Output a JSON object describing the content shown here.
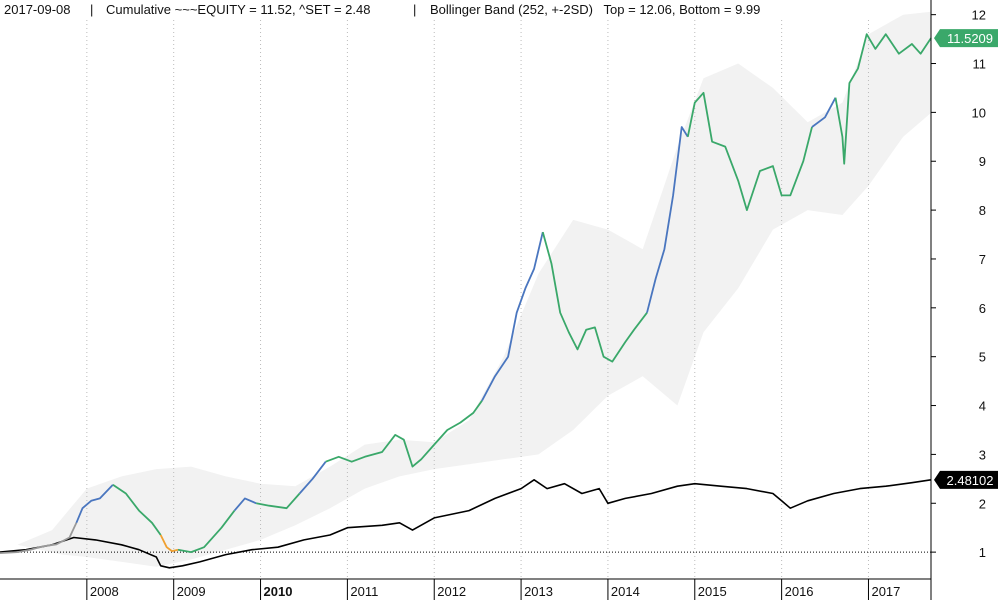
{
  "header": {
    "date": "2017-09-08",
    "sep1": "|",
    "series_info": "Cumulative ~~~EQUITY = 11.52, ^SET = 2.48",
    "sep2": "|",
    "band_info": "Bollinger Band (252, +-2SD)   Top = 12.06, Bottom = 9.99"
  },
  "chart_data": {
    "type": "line",
    "ylim": [
      0.45,
      12.3
    ],
    "y_ticks": [
      1,
      2,
      3,
      4,
      5,
      6,
      7,
      8,
      9,
      10,
      11,
      12
    ],
    "reference_line": 1,
    "x_ticks": [
      {
        "label": "2008",
        "x": 2008.0,
        "bold": false
      },
      {
        "label": "2009",
        "x": 2009.0,
        "bold": false
      },
      {
        "label": "2010",
        "x": 2010.0,
        "bold": true
      },
      {
        "label": "2011",
        "x": 2011.0,
        "bold": false
      },
      {
        "label": "2012",
        "x": 2012.0,
        "bold": false
      },
      {
        "label": "2013",
        "x": 2013.0,
        "bold": false
      },
      {
        "label": "2014",
        "x": 2014.0,
        "bold": false
      },
      {
        "label": "2015",
        "x": 2015.0,
        "bold": false
      },
      {
        "label": "2016",
        "x": 2016.0,
        "bold": false
      },
      {
        "label": "2017",
        "x": 2017.0,
        "bold": false
      }
    ],
    "xlim": [
      2007.0,
      2017.72
    ],
    "colors": {
      "equity_up": "#4a76bf",
      "equity_normal": "#3aa86a",
      "equity_flat": "#999999",
      "equity_down": "#f0a030",
      "set": "#000000",
      "band": "#f2f2f2",
      "grid": "#bbbbbb",
      "equity_tag": "#3aa86a",
      "set_tag": "#000000"
    },
    "series": [
      {
        "name": "~~~EQUITY",
        "last_value_label": "11.5209",
        "segments": [
          {
            "state": "flat",
            "points": [
              [
                2007.0,
                0.98
              ],
              [
                2007.2,
                1.0
              ],
              [
                2007.35,
                1.05
              ],
              [
                2007.5,
                1.12
              ],
              [
                2007.65,
                1.16
              ],
              [
                2007.8,
                1.3
              ],
              [
                2007.88,
                1.6
              ]
            ]
          },
          {
            "state": "up",
            "points": [
              [
                2007.88,
                1.6
              ],
              [
                2007.95,
                1.9
              ],
              [
                2008.05,
                2.05
              ],
              [
                2008.15,
                2.1
              ],
              [
                2008.3,
                2.38
              ]
            ]
          },
          {
            "state": "normal",
            "points": [
              [
                2008.3,
                2.38
              ],
              [
                2008.45,
                2.2
              ],
              [
                2008.6,
                1.85
              ],
              [
                2008.75,
                1.6
              ],
              [
                2008.85,
                1.35
              ]
            ]
          },
          {
            "state": "down",
            "points": [
              [
                2008.85,
                1.35
              ],
              [
                2008.92,
                1.1
              ],
              [
                2008.98,
                1.02
              ],
              [
                2009.05,
                1.05
              ]
            ]
          },
          {
            "state": "normal",
            "points": [
              [
                2009.05,
                1.05
              ],
              [
                2009.2,
                1.0
              ],
              [
                2009.35,
                1.1
              ],
              [
                2009.55,
                1.5
              ],
              [
                2009.7,
                1.85
              ]
            ]
          },
          {
            "state": "up",
            "points": [
              [
                2009.7,
                1.85
              ],
              [
                2009.82,
                2.1
              ],
              [
                2009.95,
                2.0
              ]
            ]
          },
          {
            "state": "normal",
            "points": [
              [
                2009.95,
                2.0
              ],
              [
                2010.1,
                1.95
              ],
              [
                2010.3,
                1.9
              ],
              [
                2010.45,
                2.2
              ]
            ]
          },
          {
            "state": "up",
            "points": [
              [
                2010.45,
                2.2
              ],
              [
                2010.6,
                2.5
              ],
              [
                2010.75,
                2.85
              ]
            ]
          },
          {
            "state": "normal",
            "points": [
              [
                2010.75,
                2.85
              ],
              [
                2010.9,
                2.95
              ],
              [
                2011.05,
                2.85
              ],
              [
                2011.2,
                2.95
              ],
              [
                2011.4,
                3.05
              ],
              [
                2011.55,
                3.4
              ],
              [
                2011.65,
                3.3
              ],
              [
                2011.75,
                2.75
              ],
              [
                2011.85,
                2.9
              ],
              [
                2012.0,
                3.2
              ],
              [
                2012.15,
                3.5
              ],
              [
                2012.3,
                3.65
              ],
              [
                2012.45,
                3.85
              ],
              [
                2012.55,
                4.1
              ]
            ]
          },
          {
            "state": "up",
            "points": [
              [
                2012.55,
                4.1
              ],
              [
                2012.7,
                4.6
              ],
              [
                2012.85,
                5.0
              ],
              [
                2012.95,
                5.9
              ],
              [
                2013.05,
                6.4
              ],
              [
                2013.15,
                6.8
              ],
              [
                2013.25,
                7.55
              ]
            ]
          },
          {
            "state": "normal",
            "points": [
              [
                2013.25,
                7.55
              ],
              [
                2013.35,
                6.9
              ],
              [
                2013.45,
                5.9
              ],
              [
                2013.55,
                5.5
              ],
              [
                2013.65,
                5.15
              ],
              [
                2013.75,
                5.55
              ],
              [
                2013.85,
                5.6
              ],
              [
                2013.95,
                5.0
              ],
              [
                2014.05,
                4.9
              ],
              [
                2014.2,
                5.3
              ],
              [
                2014.3,
                5.55
              ],
              [
                2014.45,
                5.9
              ]
            ]
          },
          {
            "state": "up",
            "points": [
              [
                2014.45,
                5.9
              ],
              [
                2014.55,
                6.6
              ],
              [
                2014.65,
                7.2
              ],
              [
                2014.75,
                8.3
              ],
              [
                2014.85,
                9.7
              ],
              [
                2014.92,
                9.5
              ]
            ]
          },
          {
            "state": "normal",
            "points": [
              [
                2014.92,
                9.5
              ],
              [
                2015.0,
                10.2
              ],
              [
                2015.1,
                10.4
              ],
              [
                2015.2,
                9.4
              ],
              [
                2015.35,
                9.3
              ],
              [
                2015.5,
                8.6
              ],
              [
                2015.6,
                8.0
              ],
              [
                2015.75,
                8.8
              ],
              [
                2015.9,
                8.9
              ],
              [
                2016.0,
                8.3
              ],
              [
                2016.1,
                8.3
              ],
              [
                2016.25,
                9.0
              ],
              [
                2016.35,
                9.7
              ]
            ]
          },
          {
            "state": "up",
            "points": [
              [
                2016.35,
                9.7
              ],
              [
                2016.5,
                9.9
              ],
              [
                2016.62,
                10.3
              ]
            ]
          },
          {
            "state": "normal",
            "points": [
              [
                2016.62,
                10.3
              ],
              [
                2016.7,
                9.5
              ],
              [
                2016.72,
                8.95
              ],
              [
                2016.78,
                10.6
              ],
              [
                2016.88,
                10.9
              ],
              [
                2016.98,
                11.6
              ],
              [
                2017.08,
                11.3
              ],
              [
                2017.2,
                11.6
              ],
              [
                2017.35,
                11.2
              ],
              [
                2017.5,
                11.4
              ],
              [
                2017.6,
                11.2
              ],
              [
                2017.72,
                11.52
              ]
            ]
          }
        ]
      },
      {
        "name": "^SET",
        "last_value_label": "2.48102",
        "points": [
          [
            2007.0,
            1.0
          ],
          [
            2007.3,
            1.05
          ],
          [
            2007.6,
            1.15
          ],
          [
            2007.85,
            1.3
          ],
          [
            2008.1,
            1.25
          ],
          [
            2008.4,
            1.15
          ],
          [
            2008.6,
            1.05
          ],
          [
            2008.8,
            0.9
          ],
          [
            2008.85,
            0.72
          ],
          [
            2008.95,
            0.68
          ],
          [
            2009.1,
            0.72
          ],
          [
            2009.3,
            0.8
          ],
          [
            2009.6,
            0.95
          ],
          [
            2009.9,
            1.05
          ],
          [
            2010.2,
            1.1
          ],
          [
            2010.5,
            1.25
          ],
          [
            2010.8,
            1.35
          ],
          [
            2011.0,
            1.5
          ],
          [
            2011.4,
            1.55
          ],
          [
            2011.6,
            1.6
          ],
          [
            2011.75,
            1.45
          ],
          [
            2012.0,
            1.7
          ],
          [
            2012.4,
            1.85
          ],
          [
            2012.7,
            2.1
          ],
          [
            2013.0,
            2.3
          ],
          [
            2013.15,
            2.48
          ],
          [
            2013.3,
            2.3
          ],
          [
            2013.5,
            2.4
          ],
          [
            2013.7,
            2.2
          ],
          [
            2013.9,
            2.3
          ],
          [
            2014.0,
            2.0
          ],
          [
            2014.2,
            2.1
          ],
          [
            2014.5,
            2.2
          ],
          [
            2014.8,
            2.35
          ],
          [
            2015.0,
            2.4
          ],
          [
            2015.3,
            2.35
          ],
          [
            2015.6,
            2.3
          ],
          [
            2015.9,
            2.2
          ],
          [
            2016.0,
            2.05
          ],
          [
            2016.1,
            1.9
          ],
          [
            2016.3,
            2.05
          ],
          [
            2016.6,
            2.2
          ],
          [
            2016.9,
            2.3
          ],
          [
            2017.2,
            2.35
          ],
          [
            2017.5,
            2.42
          ],
          [
            2017.72,
            2.48
          ]
        ]
      }
    ],
    "bollinger_band": {
      "upper": [
        [
          2007.2,
          1.15
        ],
        [
          2007.6,
          1.45
        ],
        [
          2008.0,
          2.3
        ],
        [
          2008.4,
          2.55
        ],
        [
          2008.8,
          2.7
        ],
        [
          2009.2,
          2.75
        ],
        [
          2009.6,
          2.55
        ],
        [
          2010.0,
          2.4
        ],
        [
          2010.4,
          2.35
        ],
        [
          2010.8,
          2.75
        ],
        [
          2011.2,
          3.2
        ],
        [
          2011.6,
          3.3
        ],
        [
          2012.0,
          3.25
        ],
        [
          2012.4,
          3.7
        ],
        [
          2012.8,
          5.0
        ],
        [
          2013.2,
          6.7
        ],
        [
          2013.6,
          7.8
        ],
        [
          2014.0,
          7.6
        ],
        [
          2014.4,
          7.2
        ],
        [
          2014.8,
          9.3
        ],
        [
          2015.1,
          10.7
        ],
        [
          2015.5,
          11.0
        ],
        [
          2015.9,
          10.5
        ],
        [
          2016.3,
          9.8
        ],
        [
          2016.7,
          10.2
        ],
        [
          2017.0,
          11.6
        ],
        [
          2017.4,
          12.0
        ],
        [
          2017.72,
          12.06
        ]
      ],
      "lower": [
        [
          2007.72,
          0.95
        ],
        [
          2008.0,
          0.9
        ],
        [
          2008.4,
          0.8
        ],
        [
          2008.8,
          0.7
        ],
        [
          2009.2,
          0.85
        ],
        [
          2009.6,
          1.05
        ],
        [
          2010.0,
          1.25
        ],
        [
          2010.4,
          1.55
        ],
        [
          2010.8,
          1.9
        ],
        [
          2011.2,
          2.3
        ],
        [
          2011.6,
          2.55
        ],
        [
          2012.0,
          2.7
        ],
        [
          2012.4,
          2.8
        ],
        [
          2012.8,
          2.9
        ],
        [
          2013.2,
          3.0
        ],
        [
          2013.6,
          3.5
        ],
        [
          2014.0,
          4.2
        ],
        [
          2014.4,
          4.6
        ],
        [
          2014.8,
          4.0
        ],
        [
          2015.1,
          5.5
        ],
        [
          2015.5,
          6.4
        ],
        [
          2015.9,
          7.6
        ],
        [
          2016.3,
          8.0
        ],
        [
          2016.7,
          7.9
        ],
        [
          2017.0,
          8.5
        ],
        [
          2017.4,
          9.5
        ],
        [
          2017.72,
          9.99
        ]
      ]
    }
  }
}
